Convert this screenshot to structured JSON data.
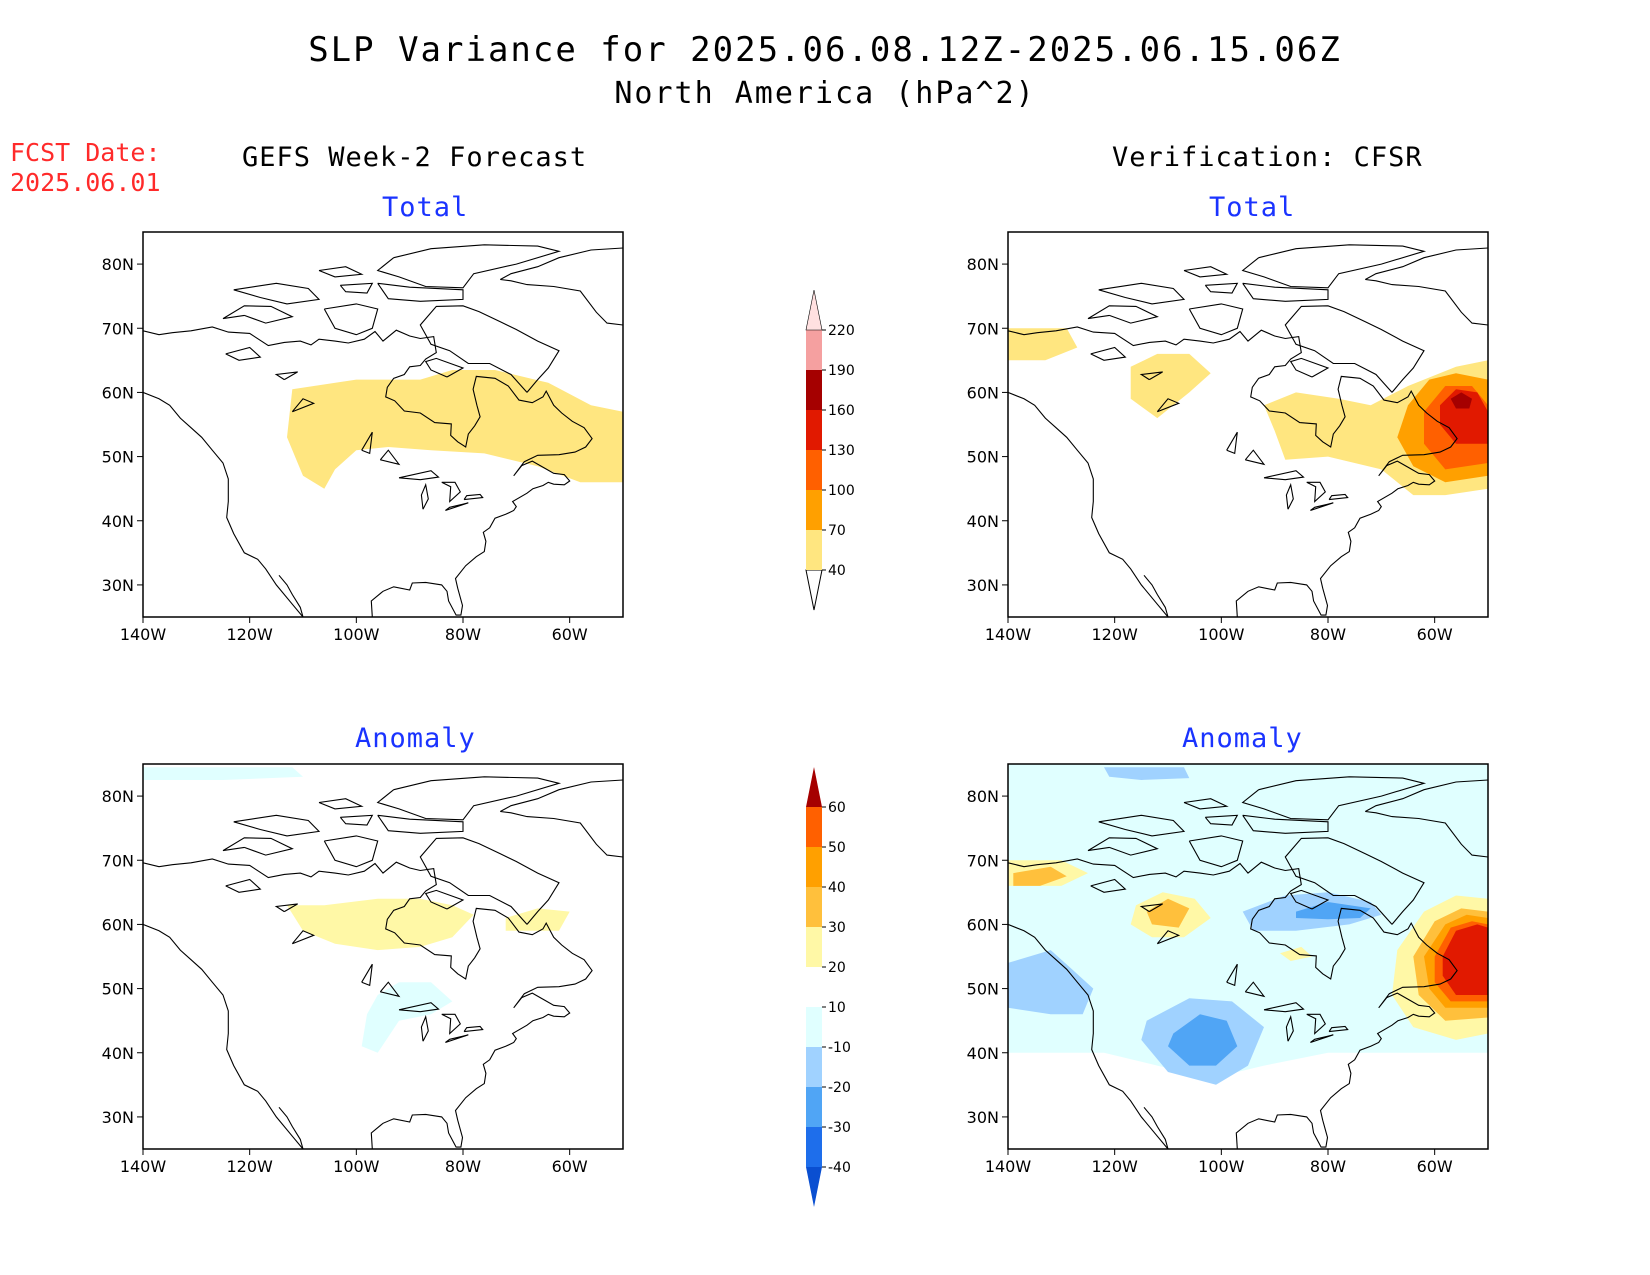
{
  "title": "SLP Variance for 2025.06.08.12Z-2025.06.15.06Z",
  "subtitle": "North America (hPa^2)",
  "fcst_label": "FCST Date:",
  "fcst_date": "2025.06.01",
  "left_header": "GEFS Week-2 Forecast",
  "right_header": "Verification: CFSR",
  "panel_titles": {
    "total": "Total",
    "anomaly": "Anomaly"
  },
  "colors": {
    "total_levels": [
      "#ffe680",
      "#ffa000",
      "#ff6000",
      "#e11900",
      "#a50000",
      "#f5a0a0",
      "#ffe0e0"
    ],
    "anomaly_pos": [
      "#fff8a6",
      "#ffc03c",
      "#ffa000",
      "#ff6000",
      "#e11900",
      "#a50000"
    ],
    "anomaly_neg": [
      "#e0ffff",
      "#a0d2ff",
      "#50a5f5",
      "#1e6eeb",
      "#0a4fd1"
    ],
    "coast": "#000000"
  },
  "chart_data": [
    {
      "type": "heatmap",
      "panel": "GEFS Week-2 Forecast - Total",
      "x_ticks": [
        "140W",
        "120W",
        "100W",
        "80W",
        "60W"
      ],
      "y_ticks": [
        "30N",
        "40N",
        "50N",
        "60N",
        "70N",
        "80N"
      ],
      "xlim": [
        -140,
        -50
      ],
      "ylim": [
        25,
        85
      ],
      "colorbar_levels": [
        40,
        70,
        100,
        130,
        160,
        190,
        220
      ],
      "regions": [
        {
          "level": 40,
          "polygon": [
            [
              -112,
              60.5
            ],
            [
              -100,
              62
            ],
            [
              -88,
              62
            ],
            [
              -82,
              63.5
            ],
            [
              -74,
              63.5
            ],
            [
              -64,
              61.5
            ],
            [
              -56,
              58
            ],
            [
              -50,
              57
            ],
            [
              -50,
              46
            ],
            [
              -58,
              46
            ],
            [
              -66,
              48.5
            ],
            [
              -76,
              50.5
            ],
            [
              -86,
              51
            ],
            [
              -94,
              51.5
            ],
            [
              -100,
              51
            ],
            [
              -104,
              48
            ],
            [
              -106,
              45
            ],
            [
              -110,
              47
            ],
            [
              -113,
              53
            ],
            [
              -112,
              60.5
            ]
          ]
        }
      ]
    },
    {
      "type": "heatmap",
      "panel": "Verification: CFSR - Total",
      "x_ticks": [
        "140W",
        "120W",
        "100W",
        "80W",
        "60W"
      ],
      "y_ticks": [
        "30N",
        "40N",
        "50N",
        "60N",
        "70N",
        "80N"
      ],
      "xlim": [
        -140,
        -50
      ],
      "ylim": [
        25,
        85
      ],
      "colorbar_levels": [
        40,
        70,
        100,
        130,
        160,
        190,
        220
      ],
      "regions": [
        {
          "level": 40,
          "polygon": [
            [
              -140,
              70
            ],
            [
              -129,
              70
            ],
            [
              -127,
              67
            ],
            [
              -133,
              65
            ],
            [
              -140,
              65
            ]
          ]
        },
        {
          "level": 40,
          "polygon": [
            [
              -117,
              64
            ],
            [
              -112,
              66
            ],
            [
              -106,
              66
            ],
            [
              -102,
              63
            ],
            [
              -106,
              60
            ],
            [
              -112,
              56
            ],
            [
              -117,
              59
            ]
          ]
        },
        {
          "level": 40,
          "polygon": [
            [
              -90,
              54
            ],
            [
              -92,
              58
            ],
            [
              -86,
              60
            ],
            [
              -78,
              59
            ],
            [
              -72,
              58
            ],
            [
              -65,
              61
            ],
            [
              -56,
              64
            ],
            [
              -50,
              65
            ],
            [
              -50,
              45
            ],
            [
              -58,
              44
            ],
            [
              -64,
              44
            ],
            [
              -70,
              48
            ],
            [
              -80,
              50
            ],
            [
              -88,
              49.5
            ]
          ]
        },
        {
          "level": 70,
          "polygon": [
            [
              -65,
              58
            ],
            [
              -61,
              62
            ],
            [
              -56,
              63
            ],
            [
              -50,
              62
            ],
            [
              -50,
              47
            ],
            [
              -58,
              46
            ],
            [
              -64,
              48.5
            ],
            [
              -67,
              53
            ]
          ]
        },
        {
          "level": 100,
          "polygon": [
            [
              -62,
              57
            ],
            [
              -58,
              61
            ],
            [
              -53,
              61
            ],
            [
              -50,
              58
            ],
            [
              -50,
              49
            ],
            [
              -58,
              48
            ],
            [
              -62,
              52
            ]
          ]
        },
        {
          "level": 130,
          "polygon": [
            [
              -59,
              58
            ],
            [
              -56,
              60.5
            ],
            [
              -52,
              60
            ],
            [
              -50,
              57
            ],
            [
              -50,
              52
            ],
            [
              -56,
              52
            ],
            [
              -59,
              55
            ]
          ]
        },
        {
          "level": 160,
          "polygon": [
            [
              -57,
              59
            ],
            [
              -55,
              60
            ],
            [
              -53,
              59
            ],
            [
              -53.5,
              57.5
            ],
            [
              -56,
              57.5
            ]
          ]
        }
      ]
    },
    {
      "type": "heatmap",
      "panel": "GEFS Week-2 Forecast - Anomaly",
      "x_ticks": [
        "140W",
        "120W",
        "100W",
        "80W",
        "60W"
      ],
      "y_ticks": [
        "30N",
        "40N",
        "50N",
        "60N",
        "70N",
        "80N"
      ],
      "xlim": [
        -140,
        -50
      ],
      "ylim": [
        25,
        85
      ],
      "colorbar_levels": [
        -40,
        -30,
        -20,
        -10,
        10,
        20,
        30,
        40,
        50,
        60
      ],
      "regions": [
        {
          "level": -10,
          "polygon": [
            [
              -140,
              84.5
            ],
            [
              -112,
              84.5
            ],
            [
              -110,
              83
            ],
            [
              -125,
              82.5
            ],
            [
              -140,
              82.5
            ]
          ]
        },
        {
          "level": -10,
          "polygon": [
            [
              -96,
              49
            ],
            [
              -92,
              51
            ],
            [
              -86,
              51
            ],
            [
              -82,
              48
            ],
            [
              -86,
              46
            ],
            [
              -92,
              45
            ],
            [
              -96,
              40
            ],
            [
              -99,
              41
            ],
            [
              -98,
              46
            ]
          ]
        },
        {
          "level": 10,
          "polygon": [
            [
              -113,
              63
            ],
            [
              -106,
              63
            ],
            [
              -96,
              64
            ],
            [
              -88,
              64
            ],
            [
              -82,
              63
            ],
            [
              -78,
              61.5
            ],
            [
              -82,
              58
            ],
            [
              -88,
              56.5
            ],
            [
              -96,
              56
            ],
            [
              -104,
              57
            ],
            [
              -110,
              59
            ]
          ]
        },
        {
          "level": 10,
          "polygon": [
            [
              -72,
              61
            ],
            [
              -66,
              62.5
            ],
            [
              -60,
              62
            ],
            [
              -62,
              59
            ],
            [
              -68,
              59
            ],
            [
              -72,
              59
            ]
          ]
        }
      ]
    },
    {
      "type": "heatmap",
      "panel": "Verification: CFSR - Anomaly",
      "x_ticks": [
        "140W",
        "120W",
        "100W",
        "80W",
        "60W"
      ],
      "y_ticks": [
        "30N",
        "40N",
        "50N",
        "60N",
        "70N",
        "80N"
      ],
      "xlim": [
        -140,
        -50
      ],
      "ylim": [
        25,
        85
      ],
      "colorbar_levels": [
        -40,
        -30,
        -20,
        -10,
        10,
        20,
        30,
        40,
        50,
        60
      ],
      "regions": [
        {
          "level": -10,
          "polygon": [
            [
              -140,
              85
            ],
            [
              -50,
              85
            ],
            [
              -50,
              40
            ],
            [
              -58,
              40
            ],
            [
              -70,
              40
            ],
            [
              -80,
              40
            ],
            [
              -92,
              38
            ],
            [
              -102,
              36
            ],
            [
              -112,
              38
            ],
            [
              -122,
              40
            ],
            [
              -132,
              40
            ],
            [
              -140,
              40
            ]
          ]
        },
        {
          "level": 10,
          "polygon": [
            [
              -140,
              70
            ],
            [
              -130,
              70
            ],
            [
              -125,
              68
            ],
            [
              -130,
              66
            ],
            [
              -140,
              66
            ]
          ]
        },
        {
          "level": 20,
          "polygon": [
            [
              -139,
              68
            ],
            [
              -132,
              69
            ],
            [
              -129,
              67.5
            ],
            [
              -134,
              66
            ],
            [
              -139,
              66
            ]
          ]
        },
        {
          "level": 10,
          "polygon": [
            [
              -116,
              63
            ],
            [
              -111,
              65
            ],
            [
              -105,
              64
            ],
            [
              -102,
              61
            ],
            [
              -107,
              58
            ],
            [
              -113,
              58
            ],
            [
              -117,
              60
            ]
          ]
        },
        {
          "level": 20,
          "polygon": [
            [
              -114,
              62
            ],
            [
              -110,
              64
            ],
            [
              -106,
              62.5
            ],
            [
              -108,
              59.5
            ],
            [
              -113,
              60
            ]
          ]
        },
        {
          "level": 10,
          "polygon": [
            [
              -89,
              55.5
            ],
            [
              -85,
              56.5
            ],
            [
              -83,
              55
            ],
            [
              -87,
              54.3
            ]
          ]
        },
        {
          "level": 10,
          "polygon": [
            [
              -67,
              56
            ],
            [
              -62,
              62
            ],
            [
              -56,
              64.5
            ],
            [
              -50,
              64
            ],
            [
              -50,
              43
            ],
            [
              -56,
              42
            ],
            [
              -64,
              44
            ],
            [
              -68,
              49
            ]
          ]
        },
        {
          "level": 20,
          "polygon": [
            [
              -64,
              55
            ],
            [
              -60,
              60.5
            ],
            [
              -55,
              62.5
            ],
            [
              -50,
              62
            ],
            [
              -50,
              45.5
            ],
            [
              -58,
              45
            ],
            [
              -63,
              49
            ]
          ]
        },
        {
          "level": 30,
          "polygon": [
            [
              -62,
              55
            ],
            [
              -58,
              60
            ],
            [
              -54,
              61.5
            ],
            [
              -50,
              61
            ],
            [
              -50,
              47
            ],
            [
              -58,
              47
            ],
            [
              -61,
              50
            ]
          ]
        },
        {
          "level": 40,
          "polygon": [
            [
              -60,
              55
            ],
            [
              -57,
              59.5
            ],
            [
              -53,
              60.5
            ],
            [
              -50,
              60
            ],
            [
              -50,
              48
            ],
            [
              -57,
              48
            ],
            [
              -60,
              51
            ]
          ]
        },
        {
          "level": 50,
          "polygon": [
            [
              -58.5,
              55
            ],
            [
              -56,
              59
            ],
            [
              -52,
              60
            ],
            [
              -50,
              59.5
            ],
            [
              -50,
              49
            ],
            [
              -56,
              49
            ],
            [
              -58.5,
              52
            ]
          ]
        },
        {
          "level": -20,
          "polygon": [
            [
              -122,
              84.5
            ],
            [
              -107,
              84.5
            ],
            [
              -106,
              82.8
            ],
            [
              -115,
              82.5
            ],
            [
              -121,
              83
            ]
          ]
        },
        {
          "level": -20,
          "polygon": [
            [
              -140,
              54
            ],
            [
              -132,
              56
            ],
            [
              -128,
              53
            ],
            [
              -124,
              50
            ],
            [
              -126,
              46
            ],
            [
              -132,
              46
            ],
            [
              -140,
              47
            ]
          ]
        },
        {
          "level": -20,
          "polygon": [
            [
              -114,
              45
            ],
            [
              -106,
              48.5
            ],
            [
              -98,
              48
            ],
            [
              -92,
              44
            ],
            [
              -95,
              38
            ],
            [
              -101,
              35
            ],
            [
              -110,
              37
            ],
            [
              -115,
              42
            ]
          ]
        },
        {
          "level": -30,
          "polygon": [
            [
              -109,
              43
            ],
            [
              -104,
              46
            ],
            [
              -99,
              45
            ],
            [
              -97,
              41
            ],
            [
              -101,
              38
            ],
            [
              -106,
              38
            ],
            [
              -110,
              41
            ]
          ]
        },
        {
          "level": -20,
          "polygon": [
            [
              -96,
              62
            ],
            [
              -88,
              64.5
            ],
            [
              -80,
              65
            ],
            [
              -72,
              63.5
            ],
            [
              -70,
              61.5
            ],
            [
              -76,
              60
            ],
            [
              -86,
              59
            ],
            [
              -94,
              59
            ]
          ]
        },
        {
          "level": -30,
          "polygon": [
            [
              -86,
              62
            ],
            [
              -80,
              63.5
            ],
            [
              -72,
              62.5
            ],
            [
              -74,
              61
            ],
            [
              -80,
              60.8
            ],
            [
              -86,
              61
            ]
          ]
        }
      ]
    }
  ]
}
